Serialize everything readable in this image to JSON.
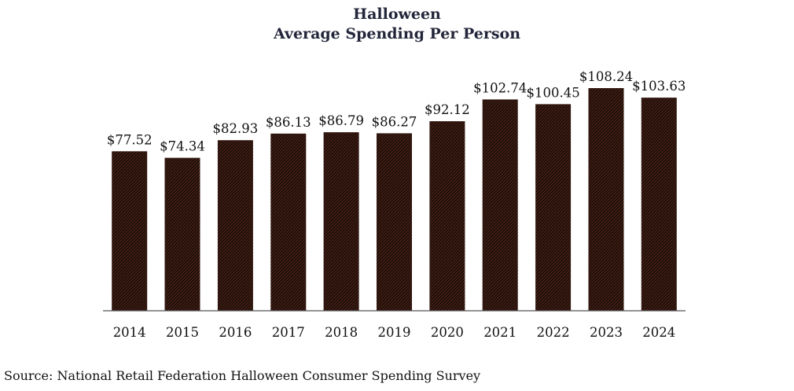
{
  "chart_data": {
    "type": "bar",
    "title": "Halloween",
    "subtitle": "Average Spending Per Person",
    "categories": [
      "2014",
      "2015",
      "2016",
      "2017",
      "2018",
      "2019",
      "2020",
      "2021",
      "2022",
      "2023",
      "2024"
    ],
    "values": [
      77.52,
      74.34,
      82.93,
      86.13,
      86.79,
      86.27,
      92.12,
      102.74,
      100.45,
      108.24,
      103.63
    ],
    "value_labels": [
      "$77.52",
      "$74.34",
      "$82.93",
      "$86.13",
      "$86.79",
      "$86.27",
      "$92.12",
      "$102.74",
      "$100.45",
      "$108.24",
      "$103.63"
    ],
    "ylim": [
      0,
      108.24
    ],
    "grid": false,
    "bar_color": "#1c100d",
    "bar_pattern_color": "#6e2a14",
    "source": "Source: National Retail Federation Halloween Consumer Spending Survey"
  }
}
